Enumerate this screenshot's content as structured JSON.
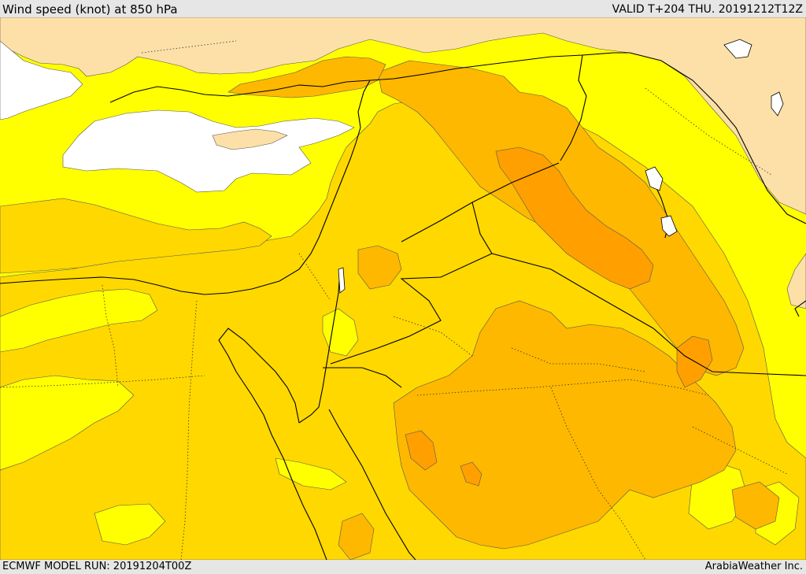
{
  "header": {
    "title": "Wind speed (knot) at 850 hPa",
    "valid": "VALID T+204 THU. 20191212T12Z"
  },
  "footer": {
    "model_run": "ECMWF MODEL RUN: 20191204T00Z",
    "credit": "ArabiaWeather Inc."
  },
  "palette": {
    "land_calm": "#fde0a8",
    "sea_calm": "#ffffff",
    "band_1": "#ffff00",
    "band_2": "#ffd800",
    "band_3": "#ffb800",
    "band_4": "#ffa000",
    "border": "#000000"
  }
}
